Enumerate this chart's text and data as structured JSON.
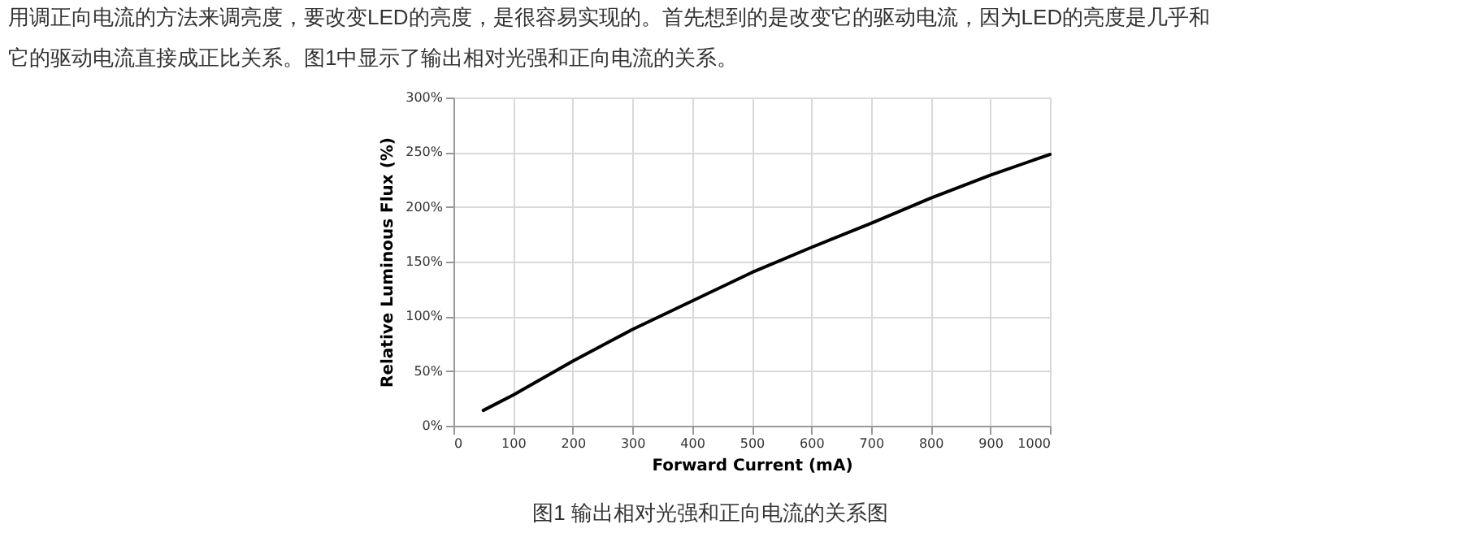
{
  "chart_data": {
    "type": "line",
    "annotations": [
      "用调正向电流的方法来调亮度，要改变LED的亮度，是很容易实现的。首先想到的是改变它的驱动电流，因为LED的亮度是几乎和",
      "它的驱动电流直接成正比关系。图1中显示了输出相对光强和正向电流的关系。",
      "图1 输出相对光强和正向电流的关系图"
    ],
    "xlabel": "Forward Current (mA)",
    "ylabel": "Relative Luminous Flux (%)",
    "x": [
      50,
      100,
      200,
      300,
      400,
      500,
      600,
      700,
      800,
      900,
      1000
    ],
    "series": [
      {
        "color": "#000000",
        "values": [
          14,
          28,
          59,
          88,
          114,
          140,
          163,
          185,
          208,
          229,
          248
        ]
      }
    ],
    "xlim": [
      0,
      1000
    ],
    "ylim": [
      0,
      300
    ],
    "xticks": [
      0,
      100,
      200,
      300,
      400,
      500,
      600,
      700,
      800,
      900,
      1000
    ],
    "yticks": [
      {
        "value": 0,
        "label": "0%"
      },
      {
        "value": 50,
        "label": "50%"
      },
      {
        "value": 100,
        "label": "100%"
      },
      {
        "value": 150,
        "label": "150%"
      },
      {
        "value": 200,
        "label": "200%"
      },
      {
        "value": 250,
        "label": "250%"
      },
      {
        "value": 300,
        "label": "300%"
      }
    ],
    "grid": true,
    "marker": "none",
    "line_style": "solid"
  }
}
